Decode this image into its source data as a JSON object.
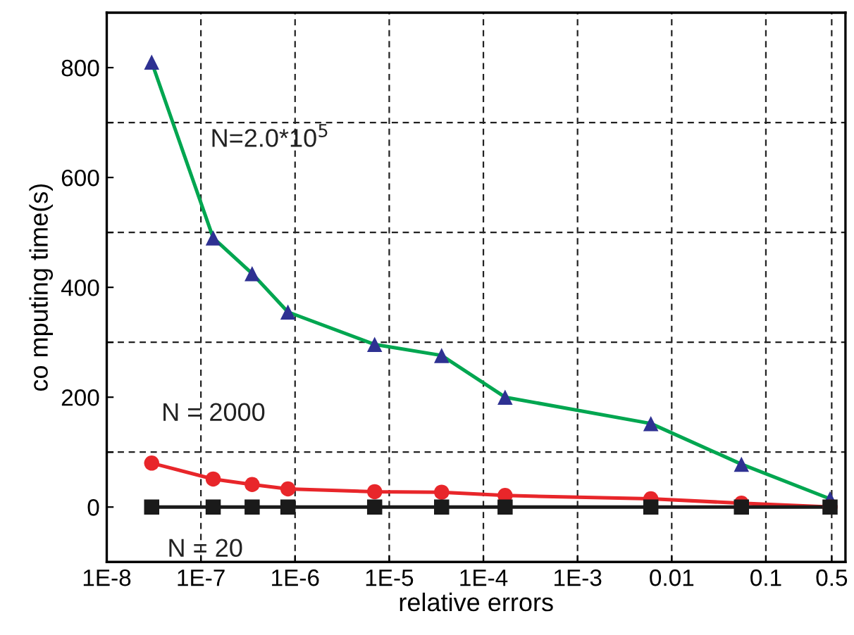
{
  "chart_data": {
    "type": "line",
    "xlabel": "relative errors",
    "ylabel": "co mputing time(s)",
    "log": "x",
    "xlim": [
      1e-08,
      0.7
    ],
    "xticks": [
      {
        "value": 1e-08,
        "label": "1E-8"
      },
      {
        "value": 1e-07,
        "label": "1E-7"
      },
      {
        "value": 1e-06,
        "label": "1E-6"
      },
      {
        "value": 1e-05,
        "label": "1E-5"
      },
      {
        "value": 0.0001,
        "label": "1E-4"
      },
      {
        "value": 0.001,
        "label": "1E-3"
      },
      0.01,
      0.1,
      0.5
    ],
    "ylim": [
      -100,
      900
    ],
    "yticks": [
      0,
      {
        "value": 100,
        "label": null
      },
      200,
      {
        "value": 300,
        "label": null
      },
      400,
      {
        "value": 500,
        "label": null
      },
      600,
      {
        "value": 700,
        "label": null
      },
      800
    ],
    "grid": true,
    "series": [
      {
        "name": "N=2.0*10$^{5}$",
        "color": "#00a650",
        "colors": [
          "#2e3192",
          "#2e3192",
          "#2e3192",
          "#2e3192",
          "#2e3192",
          "#2e3192",
          "#2e3192",
          "#2e3192",
          "#2e3192",
          "#2e3192"
        ],
        "marker": "triangle",
        "x": [
          3e-08,
          1.35e-07,
          3.5e-07,
          8.4e-07,
          7e-06,
          3.6e-05,
          0.00017,
          0.006,
          0.055,
          0.48
        ],
        "values": [
          810,
          490,
          425,
          355,
          296,
          276,
          200,
          152,
          78,
          15
        ]
      },
      {
        "name": "N = 2000",
        "color": "#e8262a",
        "marker": "circle",
        "x": [
          3e-08,
          1.35e-07,
          3.5e-07,
          8.4e-07,
          7e-06,
          3.6e-05,
          0.00017,
          0.006,
          0.055,
          0.48
        ],
        "values": [
          80,
          51,
          41,
          33,
          28,
          27,
          21,
          15,
          7,
          0
        ]
      },
      {
        "name": "N = 20",
        "color": "#1a1a1a",
        "marker": "square",
        "x": [
          3e-08,
          1.35e-07,
          3.5e-07,
          8.4e-07,
          7e-06,
          3.6e-05,
          0.00017,
          0.006,
          0.055,
          0.48
        ],
        "values": [
          0,
          0,
          0,
          0,
          0,
          0,
          0,
          0,
          0,
          0
        ]
      }
    ]
  }
}
